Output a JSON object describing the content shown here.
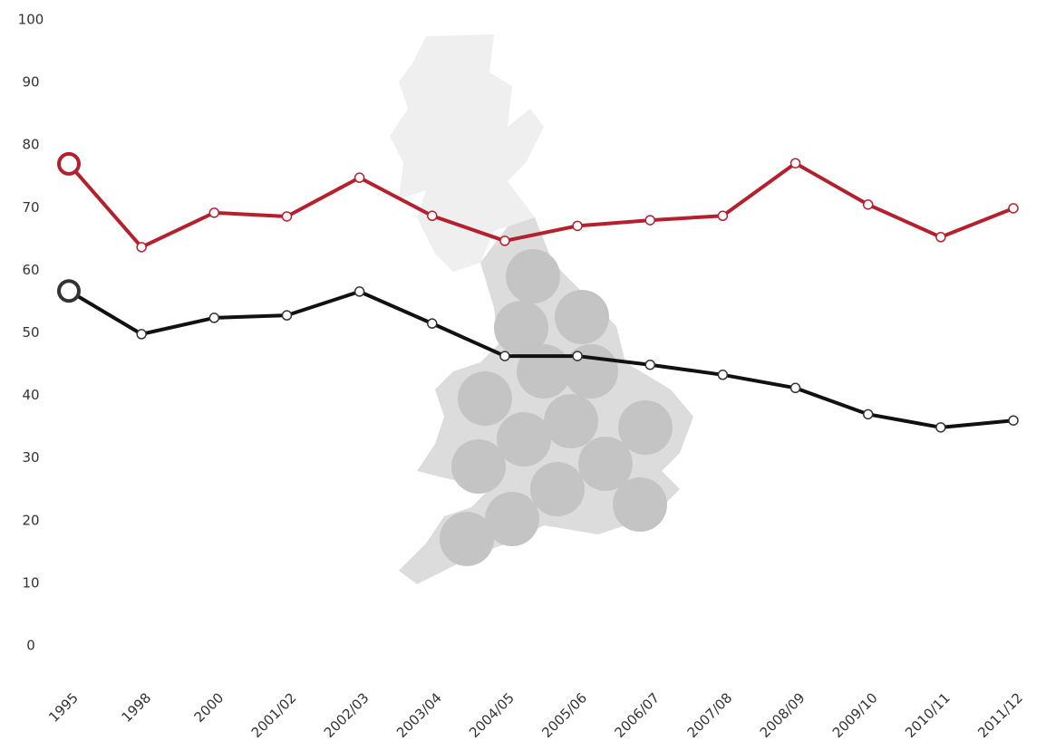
{
  "chart_data": {
    "type": "line",
    "categories": [
      "1995",
      "1998",
      "2000",
      "2001/02",
      "2002/03",
      "2003/04",
      "2004/05",
      "2005/06",
      "2006/07",
      "2007/08",
      "2008/09",
      "2009/10",
      "2010/11",
      "2011/12"
    ],
    "series": [
      {
        "color": "#b5202e",
        "values": [
          77.0,
          63.7,
          69.2,
          68.6,
          74.8,
          68.7,
          64.7,
          67.1,
          68.0,
          68.7,
          77.1,
          70.5,
          65.3,
          69.9
        ]
      },
      {
        "color": "#111111",
        "values": [
          56.7,
          49.8,
          52.4,
          52.8,
          56.6,
          51.5,
          46.3,
          46.3,
          44.9,
          43.3,
          41.2,
          37.0,
          34.9,
          36.0
        ]
      }
    ],
    "ylim": [
      0,
      100
    ],
    "yticks": [
      0,
      10,
      20,
      30,
      40,
      50,
      60,
      70,
      80,
      90,
      100
    ],
    "grid": false
  }
}
